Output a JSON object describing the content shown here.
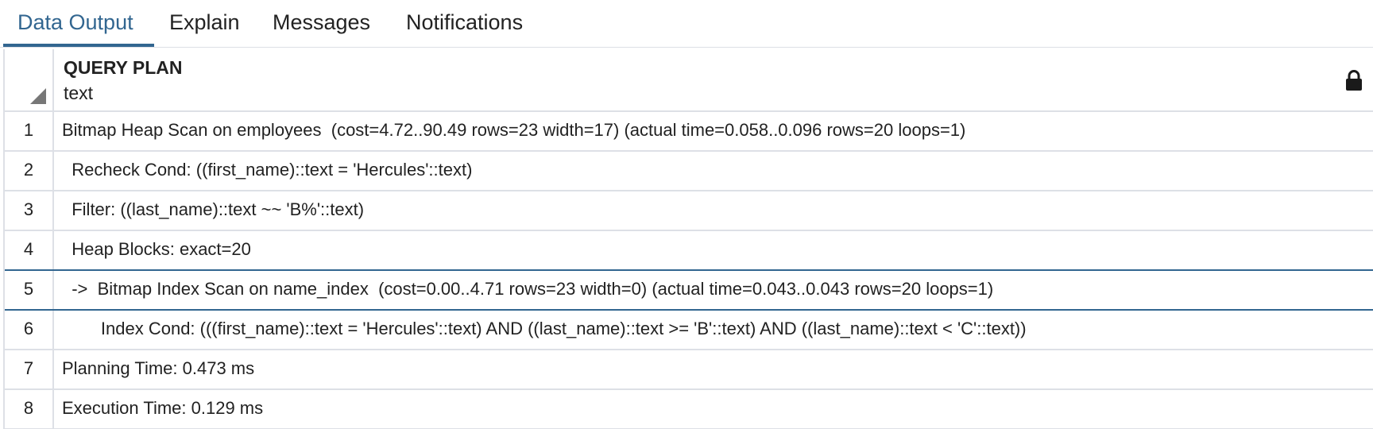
{
  "tabs": [
    {
      "label": "Data Output",
      "active": true
    },
    {
      "label": "Explain",
      "active": false
    },
    {
      "label": "Messages",
      "active": false
    },
    {
      "label": "Notifications",
      "active": false
    }
  ],
  "grid": {
    "column": {
      "title": "QUERY PLAN",
      "type": "text",
      "icon": "lock-icon"
    },
    "rows": [
      {
        "num": "1",
        "text": "Bitmap Heap Scan on employees  (cost=4.72..90.49 rows=23 width=17) (actual time=0.058..0.096 rows=20 loops=1)"
      },
      {
        "num": "2",
        "text": "  Recheck Cond: ((first_name)::text = 'Hercules'::text)"
      },
      {
        "num": "3",
        "text": "  Filter: ((last_name)::text ~~ 'B%'::text)"
      },
      {
        "num": "4",
        "text": "  Heap Blocks: exact=20"
      },
      {
        "num": "5",
        "text": "  ->  Bitmap Index Scan on name_index  (cost=0.00..4.71 rows=23 width=0) (actual time=0.043..0.043 rows=20 loops=1)"
      },
      {
        "num": "6",
        "text": "        Index Cond: (((first_name)::text = 'Hercules'::text) AND ((last_name)::text >= 'B'::text) AND ((last_name)::text < 'C'::text))"
      },
      {
        "num": "7",
        "text": "Planning Time: 0.473 ms"
      },
      {
        "num": "8",
        "text": "Execution Time: 0.129 ms"
      }
    ],
    "selected_row": 5
  },
  "colors": {
    "accent": "#326690",
    "border": "#dde0e6",
    "text": "#222222"
  }
}
